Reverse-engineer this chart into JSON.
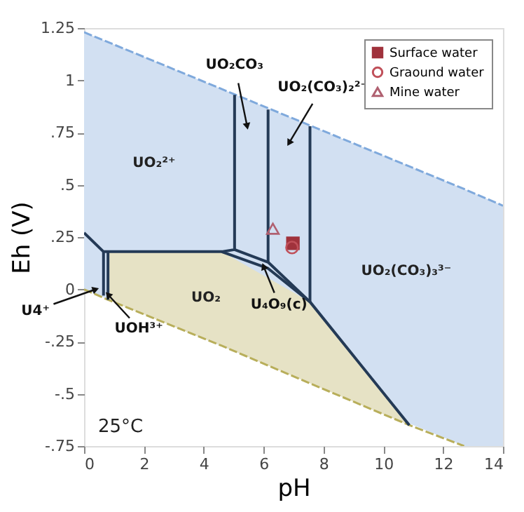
{
  "chart_data": {
    "type": "line",
    "xlabel": "pH",
    "ylabel": "Eh (V)",
    "xlim": [
      0,
      14
    ],
    "ylim": [
      -0.75,
      1.25
    ],
    "xticks": [
      0,
      2,
      4,
      6,
      8,
      10,
      12,
      14
    ],
    "yticks": [
      {
        "value": -0.75,
        "label": "-.75"
      },
      {
        "value": -0.5,
        "label": "-.5"
      },
      {
        "value": -0.25,
        "label": "-.25"
      },
      0,
      {
        "value": 0.25,
        "label": ".25"
      },
      {
        "value": 0.5,
        "label": ".5"
      },
      {
        "value": 0.75,
        "label": ".75"
      },
      1,
      {
        "value": 1.25,
        "label": "1.25"
      }
    ],
    "grid": false,
    "legend": "top right",
    "series": [
      {
        "line_style": "dashed",
        "color": "#7fa9dc",
        "x": [
          0,
          12.7,
          14
        ],
        "values": [
          1.23,
          0.48,
          0.4
        ],
        "lower": [
          0,
          -0.75,
          -0.75
        ],
        "upper": [
          1.23,
          0.48,
          0.4
        ]
      },
      {
        "line_style": "dashed",
        "color": "#b8ae5a",
        "x": [
          0,
          0.8,
          4.6,
          7.55,
          10.87,
          12.7
        ],
        "values": [
          0,
          -0.05,
          -0.27,
          -0.45,
          -0.65,
          -0.75
        ],
        "lower": [
          null,
          -0.05,
          -0.27,
          -0.45,
          -0.65,
          null
        ],
        "upper": [
          null,
          0.18,
          0.18,
          -0.06,
          -0.65,
          null
        ]
      },
      {
        "color": "#243a56",
        "x": [
          0,
          0.65,
          0.8,
          4.6,
          6.15,
          7.55,
          10.87
        ],
        "values": [
          0.27,
          0.18,
          0.18,
          0.18,
          0.1,
          -0.06,
          -0.65
        ]
      },
      {
        "color": "#243a56",
        "x": [
          0.65,
          0.65
        ],
        "values": [
          0.18,
          -0.03
        ]
      },
      {
        "color": "#243a56",
        "x": [
          0.8,
          0.8
        ],
        "values": [
          0.18,
          -0.05
        ]
      },
      {
        "color": "#243a56",
        "x": [
          4.6,
          5.03,
          5.03
        ],
        "values": [
          0.18,
          0.19,
          0.93
        ]
      },
      {
        "color": "#243a56",
        "x": [
          5.03,
          6.15,
          7.55
        ],
        "values": [
          0.19,
          0.13,
          -0.06
        ]
      },
      {
        "color": "#243a56",
        "x": [
          6.15,
          6.15
        ],
        "values": [
          0.13,
          0.86
        ]
      },
      {
        "color": "#243a56",
        "x": [
          7.55,
          7.55
        ],
        "values": [
          -0.06,
          0.78
        ]
      },
      {
        "type": "scatter",
        "name": "Surface water",
        "marker": "square",
        "color": "#a0323c",
        "x": [
          6.98
        ],
        "values": [
          0.22
        ]
      },
      {
        "type": "scatter",
        "name": "Graound water",
        "marker": "circle",
        "color": "#c0505a",
        "x": [
          6.95
        ],
        "values": [
          0.2
        ]
      },
      {
        "type": "scatter",
        "name": "Mine water",
        "marker": "triangle",
        "color": "#b06070",
        "x": [
          6.31
        ],
        "values": [
          0.29
        ]
      }
    ],
    "annotations": [
      "UO₂²⁺",
      {
        "text": "UO₂CO₃",
        "x": 5.45,
        "y": 0.78
      },
      {
        "text": "UO₂(CO₃)₂²⁻",
        "x": 6.85,
        "y": 0.7
      },
      "UO₂(CO₃)₃³⁻",
      "UO₂",
      {
        "text": "U₄O₉(c)",
        "x": 6.0,
        "y": 0.11
      },
      {
        "text": "U4⁺",
        "x": 0.39,
        "y": 0.0
      },
      {
        "text": "UOH³⁺",
        "x": 0.8,
        "y": -0.025
      },
      "25°C"
    ]
  }
}
